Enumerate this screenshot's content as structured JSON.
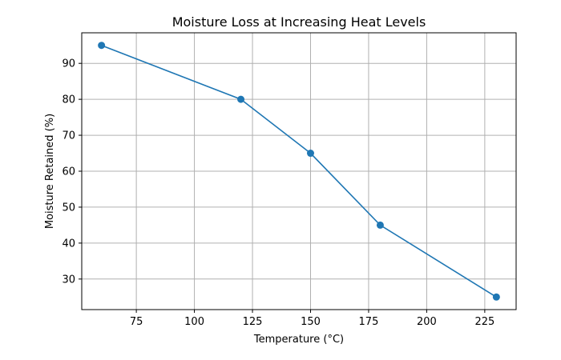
{
  "chart_data": {
    "type": "line",
    "title": "Moisture Loss at Increasing Heat Levels",
    "xlabel": "Temperature (°C)",
    "ylabel": "Moisture Retained (%)",
    "x": [
      60,
      120,
      150,
      180,
      230
    ],
    "series": [
      {
        "name": "Moisture Retained",
        "values": [
          95,
          80,
          65,
          45,
          25
        ],
        "color": "#1f77b4",
        "marker": "circle"
      }
    ],
    "xlim": [
      51.5,
      238.5
    ],
    "ylim": [
      21.5,
      98.5
    ],
    "xticks": [
      75,
      100,
      125,
      150,
      175,
      200,
      225
    ],
    "yticks": [
      30,
      40,
      50,
      60,
      70,
      80,
      90
    ],
    "grid": true,
    "legend": "none"
  }
}
